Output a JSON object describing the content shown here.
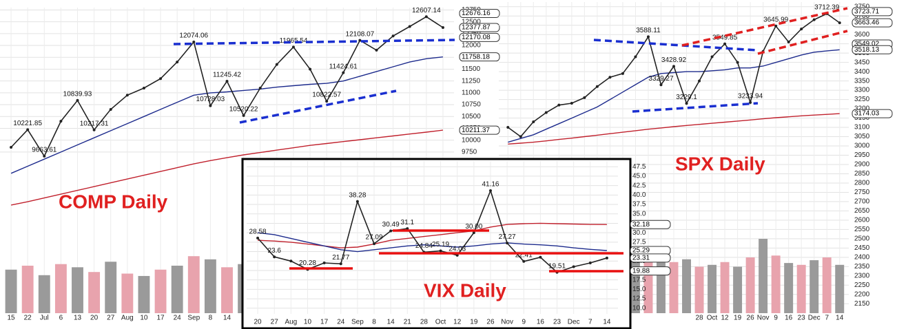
{
  "chart_data": [
    {
      "type": "line",
      "title": "COMP Daily",
      "categories": [
        "15",
        "22",
        "Jul",
        "6",
        "13",
        "20",
        "27",
        "Aug",
        "10",
        "17",
        "24",
        "Sep",
        "8",
        "14",
        null,
        null,
        null,
        null,
        null,
        null,
        null,
        null,
        null,
        null,
        null,
        null,
        null
      ],
      "series": [
        {
          "color": "#222222",
          "values": [
            9850,
            10221.85,
            9663.61,
            10400,
            10839.93,
            10217.31,
            10650,
            10950,
            11100,
            11300,
            11650,
            12074.06,
            10728.03,
            11245.42,
            10520.22,
            11100,
            11600,
            11965.54,
            11500,
            10822.57,
            11424.61,
            12108.07,
            11900,
            12200,
            12400,
            12607.14,
            12377.87
          ]
        },
        {
          "color": "#1c2a8c",
          "values": [
            9300,
            9450,
            9600,
            9750,
            9900,
            10050,
            10200,
            10350,
            10500,
            10650,
            10800,
            10950,
            11000,
            11020,
            11050,
            11080,
            11120,
            11150,
            11180,
            11200,
            11250,
            11350,
            11450,
            11550,
            11650,
            11720,
            11758.18
          ]
        },
        {
          "color": "#c0202c",
          "values": [
            8630,
            8700,
            8780,
            8860,
            8940,
            9020,
            9100,
            9180,
            9260,
            9340,
            9420,
            9500,
            9570,
            9630,
            9690,
            9740,
            9790,
            9840,
            9890,
            9930,
            9970,
            10010,
            10050,
            10090,
            10130,
            10170,
            10211.37
          ]
        }
      ],
      "annotations": [
        12074.06,
        10221.85,
        10839.93,
        10217.31,
        9663.61,
        11245.42,
        10728.03,
        10520.22,
        11965.54,
        12108.07,
        11424.61,
        10822.57,
        12607.14
      ],
      "markers": [
        12676.16,
        12377.87,
        12170.08,
        11758.18,
        10211.37
      ],
      "ylim": [
        8600,
        12800
      ],
      "yticks": [
        9750,
        10000,
        10250,
        10500,
        10750,
        11000,
        11250,
        11500,
        11750,
        12000,
        12250,
        12500,
        12750
      ],
      "grid": true,
      "volume": [
        55,
        60,
        48,
        62,
        58,
        52,
        65,
        50,
        47,
        55,
        60,
        72,
        68,
        58,
        62,
        50,
        55,
        60,
        52,
        65,
        70,
        58,
        52,
        55,
        60,
        62,
        50
      ],
      "volume_lim": [
        0,
        100
      ],
      "volume_colors": [
        "#9a9a9a",
        "#e8a3ad"
      ]
    },
    {
      "type": "line",
      "title": "SPX Daily",
      "categories": [
        null,
        null,
        null,
        null,
        null,
        null,
        null,
        null,
        null,
        null,
        null,
        null,
        null,
        null,
        null,
        "28",
        "Oct",
        "12",
        "19",
        "26",
        "Nov",
        "9",
        "16",
        "23",
        "Dec",
        "7",
        "14"
      ],
      "series": [
        {
          "color": "#222222",
          "values": [
            3100,
            3050,
            3130,
            3180,
            3220,
            3230,
            3260,
            3320,
            3370,
            3390,
            3480,
            3588.11,
            3329.27,
            3428.92,
            3229.1,
            3350,
            3480,
            3549.85,
            3450,
            3233.94,
            3509,
            3645.99,
            3560,
            3630,
            3680,
            3712.39,
            3663.46
          ]
        },
        {
          "color": "#1c2a8c",
          "values": [
            3020,
            3040,
            3060,
            3090,
            3120,
            3150,
            3180,
            3210,
            3250,
            3290,
            3330,
            3370,
            3390,
            3395,
            3400,
            3400,
            3405,
            3410,
            3420,
            3420,
            3430,
            3450,
            3470,
            3490,
            3505,
            3512,
            3518.13
          ]
        },
        {
          "color": "#c0202c",
          "values": [
            3010,
            3015,
            3020,
            3027,
            3035,
            3042,
            3050,
            3058,
            3066,
            3074,
            3082,
            3090,
            3097,
            3104,
            3110,
            3116,
            3122,
            3128,
            3134,
            3140,
            3146,
            3152,
            3157,
            3162,
            3166,
            3170,
            3174.03
          ]
        }
      ],
      "annotations": [
        3588.11,
        3549.85,
        3428.92,
        3329.27,
        3229.1,
        3645.99,
        3233.94,
        3712.39
      ],
      "markers": [
        3723.71,
        3663.46,
        3549.02,
        3518.13,
        3174.03
      ],
      "ylim": [
        2125,
        3775
      ],
      "yticks": [
        2150,
        2200,
        2250,
        2300,
        2350,
        2400,
        2450,
        2500,
        2550,
        2600,
        2650,
        2700,
        2750,
        2800,
        2850,
        2900,
        2950,
        3000,
        3050,
        3100,
        3150,
        3200,
        3250,
        3300,
        3350,
        3400,
        3450,
        3500,
        3550,
        3600,
        3650,
        3700,
        3750
      ],
      "grid": true,
      "volume": [
        50,
        48,
        55,
        52,
        47,
        50,
        53,
        49,
        51,
        55,
        58,
        66,
        62,
        55,
        58,
        50,
        52,
        55,
        50,
        60,
        80,
        62,
        54,
        52,
        57,
        60,
        52
      ],
      "volume_lim": [
        0,
        100
      ],
      "volume_colors": [
        "#9a9a9a",
        "#e8a3ad"
      ]
    },
    {
      "type": "line",
      "title": "VIX Daily",
      "categories": [
        "20",
        "27",
        "Aug",
        "10",
        "17",
        "24",
        "Sep",
        "8",
        "14",
        "21",
        "28",
        "Oct",
        "12",
        "19",
        "26",
        "Nov",
        "9",
        "16",
        "23",
        "Dec",
        "7",
        "14"
      ],
      "series": [
        {
          "color": "#222222",
          "values": [
            28.58,
            23.6,
            22.5,
            20.28,
            22,
            21.77,
            38.28,
            27.09,
            30.49,
            31.1,
            24.84,
            25.19,
            24.03,
            30.0,
            41.16,
            27.27,
            22.41,
            23.5,
            19.51,
            21,
            22,
            23.31
          ]
        },
        {
          "color": "#1c2a8c",
          "values": [
            30,
            29.5,
            28.5,
            27.5,
            26.5,
            25.5,
            25,
            25.5,
            26,
            26.5,
            26.8,
            26.5,
            26.2,
            26.5,
            27,
            27.3,
            27,
            26.8,
            26.5,
            26,
            25.6,
            25.29
          ]
        },
        {
          "color": "#c0202c",
          "values": [
            28,
            27.8,
            27.5,
            27,
            26.5,
            26,
            26.2,
            27,
            28,
            28.5,
            29,
            29.5,
            30,
            30.5,
            31.5,
            32.2,
            32.4,
            32.5,
            32.4,
            32.3,
            32.2,
            32.18
          ]
        }
      ],
      "annotations": [
        28.58,
        23.6,
        20.28,
        27.09,
        21.77,
        38.28,
        31.1,
        30.49,
        {
          "value": 30,
          "label": "30.00"
        },
        24.84,
        25.19,
        24.03,
        41.16,
        27.27,
        22.41,
        19.51
      ],
      "markers": [
        32.18,
        25.29,
        23.31,
        19.88
      ],
      "ylim": [
        8.5,
        49
      ],
      "yticks": [
        {
          "value": 10,
          "label": "10.0"
        },
        12.5,
        {
          "value": 15,
          "label": "15.0"
        },
        17.5,
        {
          "value": 20,
          "label": "20.0"
        },
        22.5,
        {
          "value": 25,
          "label": "25.0"
        },
        27.5,
        {
          "value": 30,
          "label": "30.0"
        },
        32.5,
        {
          "value": 35,
          "label": "35.0"
        },
        37.5,
        {
          "value": 40,
          "label": "40.0"
        },
        42.5,
        {
          "value": 45,
          "label": "45.0"
        },
        47.5
      ],
      "grid": true
    }
  ]
}
